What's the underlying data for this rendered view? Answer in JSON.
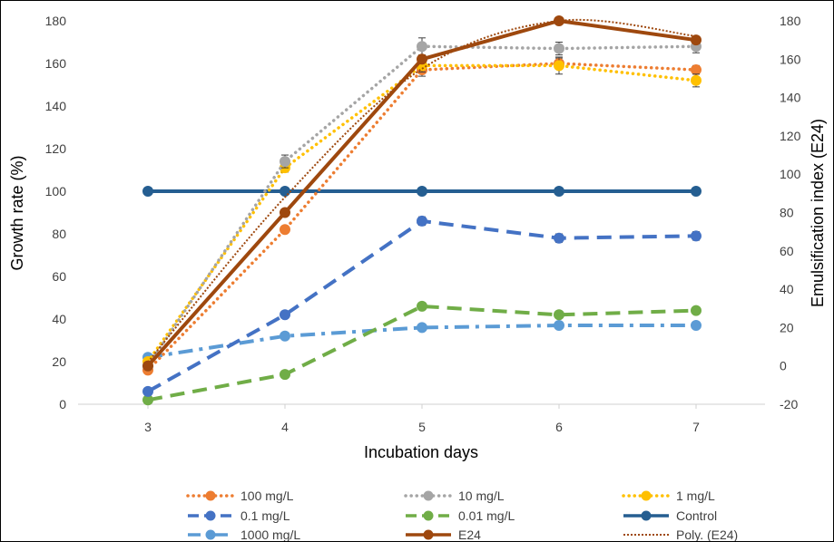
{
  "chart_data": {
    "type": "line",
    "xlabel": "Incubation days",
    "ylabel": "Growth rate (%)",
    "y2label": "Emulsification index (E24)",
    "x": [
      3,
      4,
      5,
      6,
      7
    ],
    "x_ticks": [
      "3",
      "4",
      "5",
      "6",
      "7"
    ],
    "ylim": [
      0,
      180
    ],
    "y_ticks": [
      0,
      20,
      40,
      60,
      80,
      100,
      120,
      140,
      160,
      180
    ],
    "y2lim": [
      -20,
      180
    ],
    "y2_ticks": [
      -20,
      0,
      20,
      40,
      60,
      80,
      100,
      120,
      140,
      160,
      180
    ],
    "grid": false,
    "legend_position": "bottom",
    "series": [
      {
        "name": "100 mg/L",
        "axis": "left",
        "color": "#ED7D31",
        "style": "dotted",
        "values": [
          16,
          82,
          157,
          160,
          157
        ],
        "errors": [
          0,
          1.5,
          3,
          2.5,
          2
        ]
      },
      {
        "name": "10 mg/L",
        "axis": "left",
        "color": "#A5A5A5",
        "style": "dotted",
        "values": [
          18,
          114,
          168,
          167,
          168
        ],
        "errors": [
          0,
          3,
          4,
          3,
          3
        ]
      },
      {
        "name": "1 mg/L",
        "axis": "left",
        "color": "#FFC000",
        "style": "dotted",
        "values": [
          20,
          111,
          159,
          159,
          152
        ],
        "errors": [
          0,
          2,
          3,
          4,
          3
        ]
      },
      {
        "name": "0.1 mg/L",
        "axis": "left",
        "color": "#4472C4",
        "style": "dashed",
        "values": [
          6,
          42,
          86,
          78,
          79
        ],
        "errors": [
          0,
          1,
          2,
          2,
          2
        ]
      },
      {
        "name": "0.01 mg/L",
        "axis": "left",
        "color": "#70AD47",
        "style": "dashed",
        "values": [
          2,
          14,
          46,
          42,
          44
        ],
        "errors": [
          0,
          1,
          1,
          1,
          1
        ]
      },
      {
        "name": "Control",
        "axis": "left",
        "color": "#255E91",
        "style": "solid",
        "values": [
          100,
          100,
          100,
          100,
          100
        ],
        "errors": [
          0,
          0,
          0,
          0,
          0
        ]
      },
      {
        "name": "1000 mg/L",
        "axis": "left",
        "color": "#5B9BD5",
        "style": "dashdot",
        "values": [
          22,
          32,
          36,
          37,
          37
        ],
        "errors": [
          0,
          1,
          1,
          1,
          1
        ]
      },
      {
        "name": "E24",
        "axis": "right",
        "color": "#9E480E",
        "style": "solid",
        "values": [
          0,
          80,
          160,
          180,
          170
        ],
        "errors": [
          0,
          0,
          0,
          0,
          0
        ]
      },
      {
        "name": "Poly. (E24)",
        "axis": "right",
        "color": "#9E480E",
        "style": "trend",
        "values": [
          2,
          88,
          155,
          180,
          172
        ],
        "errors": [
          0,
          0,
          0,
          0,
          0
        ]
      }
    ]
  }
}
